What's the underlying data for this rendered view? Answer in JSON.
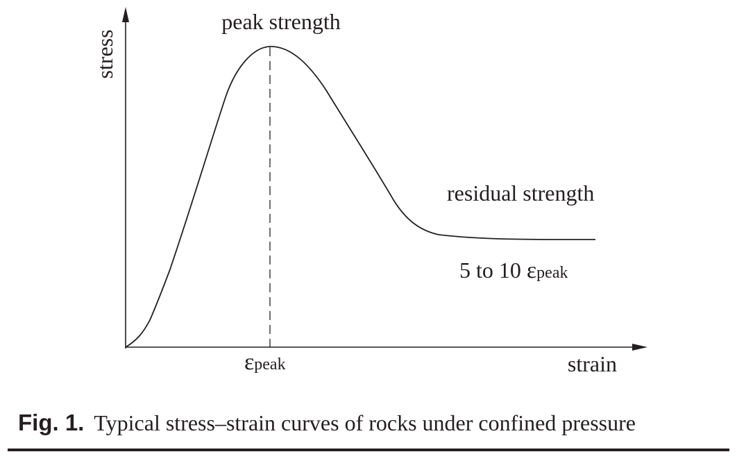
{
  "figure": {
    "y_axis_label": "stress",
    "x_axis_label": "strain",
    "peak_label": "peak strength",
    "residual_label": "residual strength",
    "peak_tick_symbol": "ε",
    "peak_tick_subscript": "peak",
    "residual_range_prefix": "5 to 10 ",
    "residual_range_symbol": "ε",
    "residual_range_subscript": "peak",
    "caption_number": "Fig. 1.",
    "caption_text": "Typical stress–strain curves of rocks under confined pressure"
  },
  "colors": {
    "ink": "#231f20",
    "background": "#ffffff"
  }
}
